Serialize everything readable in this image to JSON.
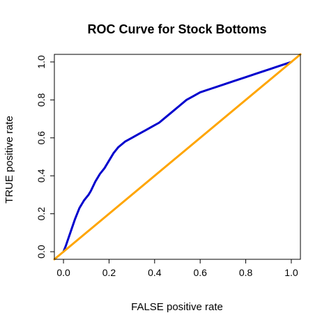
{
  "chart_data": {
    "type": "line",
    "title": "ROC Curve for Stock Bottoms",
    "xlabel": "FALSE positive rate",
    "ylabel": "TRUE positive rate",
    "xlim": [
      -0.04,
      1.04
    ],
    "ylim": [
      -0.04,
      1.04
    ],
    "x_ticks": [
      0.0,
      0.2,
      0.4,
      0.6,
      0.8,
      1.0
    ],
    "y_ticks": [
      0.0,
      0.2,
      0.4,
      0.6,
      0.8,
      1.0
    ],
    "x_tick_labels": [
      "0.0",
      "0.2",
      "0.4",
      "0.6",
      "0.8",
      "1.0"
    ],
    "y_tick_labels": [
      "0.0",
      "0.2",
      "0.4",
      "0.6",
      "0.8",
      "1.0"
    ],
    "grid": false,
    "series": [
      {
        "color": "#0000CD",
        "x": [
          0.0,
          0.01,
          0.03,
          0.05,
          0.07,
          0.09,
          0.11,
          0.12,
          0.14,
          0.16,
          0.18,
          0.2,
          0.22,
          0.24,
          0.27,
          0.3,
          0.33,
          0.36,
          0.39,
          0.42,
          0.45,
          0.48,
          0.51,
          0.54,
          0.57,
          0.6,
          0.65,
          0.7,
          0.75,
          0.8,
          0.85,
          0.9,
          0.95,
          1.0
        ],
        "y": [
          0.0,
          0.03,
          0.1,
          0.17,
          0.23,
          0.27,
          0.3,
          0.32,
          0.37,
          0.41,
          0.44,
          0.48,
          0.52,
          0.55,
          0.58,
          0.6,
          0.62,
          0.64,
          0.66,
          0.68,
          0.71,
          0.74,
          0.77,
          0.8,
          0.82,
          0.84,
          0.86,
          0.88,
          0.9,
          0.92,
          0.94,
          0.96,
          0.98,
          1.0
        ]
      },
      {
        "color": "#FFA500",
        "x": [
          -0.04,
          1.04
        ],
        "y": [
          -0.04,
          1.04
        ]
      }
    ]
  }
}
